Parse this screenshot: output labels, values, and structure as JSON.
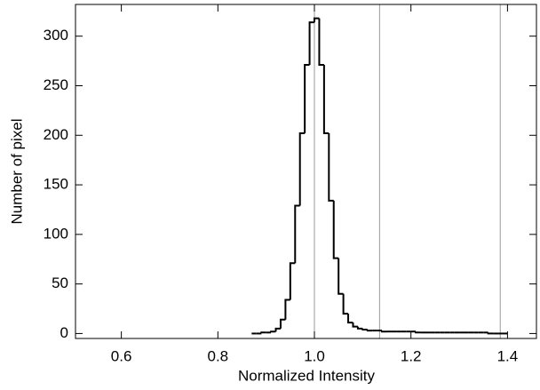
{
  "chart_data": {
    "type": "histogram",
    "xlabel": "Normalized Intensity",
    "ylabel": "Number of pixel",
    "bins": [
      0.87,
      0.88,
      0.89,
      0.9,
      0.91,
      0.92,
      0.93,
      0.94,
      0.95,
      0.96,
      0.97,
      0.98,
      0.99,
      1.0,
      1.01,
      1.02,
      1.03,
      1.04,
      1.05,
      1.06,
      1.07,
      1.08,
      1.09,
      1.1,
      1.11,
      1.12,
      1.13,
      1.14,
      1.15,
      1.16,
      1.17,
      1.18,
      1.19,
      1.2,
      1.21,
      1.22,
      1.23,
      1.24,
      1.25,
      1.26,
      1.27,
      1.28,
      1.29,
      1.3,
      1.31,
      1.32,
      1.33,
      1.34,
      1.35,
      1.36,
      1.37,
      1.38,
      1.39,
      1.4
    ],
    "values": [
      0,
      0,
      1,
      1,
      2,
      5,
      14,
      34,
      71,
      129,
      202,
      271,
      314,
      318,
      271,
      202,
      134,
      76,
      40,
      20,
      11,
      7,
      5,
      4,
      3,
      3,
      3,
      2,
      2,
      2,
      2,
      2,
      2,
      2,
      1,
      1,
      1,
      1,
      1,
      1,
      1,
      1,
      1,
      1,
      1,
      1,
      1,
      1,
      1,
      0,
      0,
      0,
      0
    ],
    "color": "#000000",
    "vlines": [
      1.0,
      1.135,
      1.385
    ],
    "vline_color": "#999999",
    "xlim": [
      0.505,
      1.46
    ],
    "ylim": [
      -5,
      332
    ],
    "xticks": [
      0.6,
      0.8,
      {
        "value": 1,
        "label": "1.0"
      },
      1.2,
      1.4
    ],
    "yticks": [
      0,
      50,
      100,
      150,
      200,
      250,
      300
    ]
  }
}
